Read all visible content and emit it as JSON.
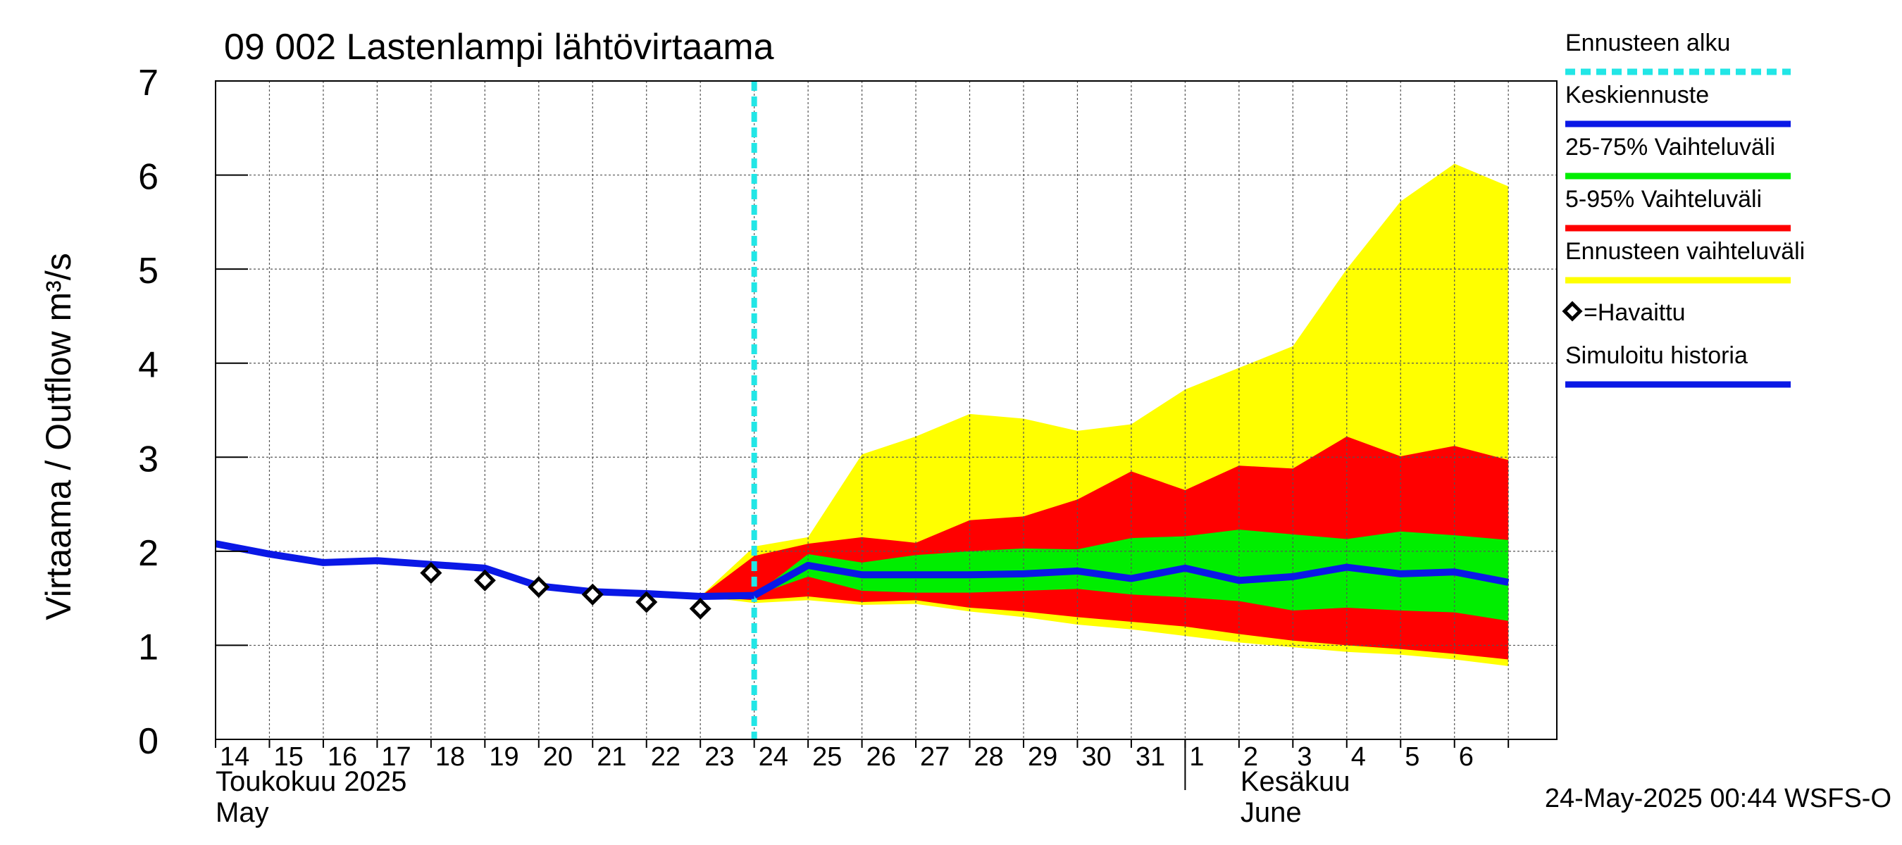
{
  "chart_data": {
    "type": "area",
    "title": "09 002 Lastenlampi lähtövirtaama",
    "ylabel": "Virtaama / Outflow    m³/s",
    "ylim": [
      0,
      7
    ],
    "yticks": [
      0,
      1,
      2,
      3,
      4,
      5,
      6,
      7
    ],
    "x_range": [
      "2025-05-14",
      "2025-06-07"
    ],
    "x_tick_labels": [
      "14",
      "15",
      "16",
      "17",
      "18",
      "19",
      "20",
      "21",
      "22",
      "23",
      "24",
      "25",
      "26",
      "27",
      "28",
      "29",
      "30",
      "31",
      "1",
      "2",
      "3",
      "4",
      "5",
      "6"
    ],
    "month_labels": [
      {
        "fi": "Toukokuu  2025",
        "en": "May",
        "start": "2025-05-14"
      },
      {
        "fi": "Kesäkuu",
        "en": "June",
        "start": "2025-06-01"
      }
    ],
    "grid": true,
    "legend_position": "right",
    "forecast_start": "2025-05-24",
    "legend": [
      {
        "label": "Ennusteen alku",
        "color": "#22e6e6",
        "style": "dashed"
      },
      {
        "label": "Keskiennuste",
        "color": "#0a18e6",
        "style": "line"
      },
      {
        "label": "25-75% Vaihteluväli",
        "color": "#00ee00",
        "style": "line"
      },
      {
        "label": "5-95% Vaihteluväli",
        "color": "#ff0000",
        "style": "line"
      },
      {
        "label": "Ennusteen vaihteluväli",
        "color": "#ffff00",
        "style": "line"
      },
      {
        "label": "=Havaittu",
        "color": "#000000",
        "style": "marker"
      },
      {
        "label": "Simuloitu historia",
        "color": "#0a18e6",
        "style": "line"
      }
    ],
    "series": [
      {
        "name": "Simuloitu historia",
        "color": "#0a18e6",
        "x": [
          0,
          1,
          2,
          3,
          4,
          5,
          6,
          7,
          8,
          9,
          10
        ],
        "values": [
          2.08,
          1.97,
          1.88,
          1.9,
          1.86,
          1.82,
          1.63,
          1.57,
          1.55,
          1.52,
          1.53
        ]
      },
      {
        "name": "Keskiennuste",
        "color": "#0a18e6",
        "x": [
          10,
          11,
          12,
          13,
          14,
          15,
          16,
          17,
          18,
          19,
          20,
          21,
          22,
          23,
          24
        ],
        "values": [
          1.53,
          1.85,
          1.75,
          1.75,
          1.75,
          1.76,
          1.79,
          1.71,
          1.82,
          1.69,
          1.73,
          1.83,
          1.76,
          1.78,
          1.67
        ]
      },
      {
        "name": "=Havaittu",
        "color": "#000000",
        "type": "scatter",
        "x": [
          4,
          5,
          6,
          7,
          8,
          9
        ],
        "values": [
          1.77,
          1.69,
          1.62,
          1.54,
          1.46,
          1.39
        ]
      },
      {
        "name": "Ennusteen vaihteluväli",
        "color": "#ffff00",
        "type": "band",
        "x": [
          9,
          10,
          11,
          12,
          13,
          14,
          15,
          16,
          17,
          18,
          19,
          20,
          21,
          22,
          23,
          24
        ],
        "low": [
          1.52,
          1.45,
          1.48,
          1.43,
          1.44,
          1.36,
          1.3,
          1.22,
          1.17,
          1.1,
          1.03,
          0.98,
          0.93,
          0.9,
          0.85,
          0.78
        ],
        "high": [
          1.52,
          2.05,
          2.15,
          3.03,
          3.22,
          3.46,
          3.41,
          3.28,
          3.35,
          3.72,
          3.95,
          4.18,
          5.0,
          5.72,
          6.12,
          5.88
        ]
      },
      {
        "name": "5-95% Vaihteluväli",
        "color": "#ff0000",
        "type": "band",
        "x": [
          9,
          10,
          11,
          12,
          13,
          14,
          15,
          16,
          17,
          18,
          19,
          20,
          21,
          22,
          23,
          24
        ],
        "low": [
          1.52,
          1.48,
          1.52,
          1.46,
          1.48,
          1.4,
          1.36,
          1.3,
          1.25,
          1.2,
          1.12,
          1.05,
          1.0,
          0.96,
          0.91,
          0.85
        ],
        "high": [
          1.52,
          1.95,
          2.08,
          2.15,
          2.09,
          2.33,
          2.37,
          2.55,
          2.85,
          2.65,
          2.91,
          2.88,
          3.22,
          3.01,
          3.12,
          2.97
        ]
      },
      {
        "name": "25-75% Vaihteluväli",
        "color": "#00ee00",
        "type": "band",
        "x": [
          10,
          11,
          12,
          13,
          14,
          15,
          16,
          17,
          18,
          19,
          20,
          21,
          22,
          23,
          24
        ],
        "low": [
          1.53,
          1.73,
          1.58,
          1.56,
          1.56,
          1.58,
          1.6,
          1.54,
          1.51,
          1.47,
          1.37,
          1.4,
          1.37,
          1.35,
          1.26
        ],
        "high": [
          1.53,
          1.97,
          1.88,
          1.96,
          2.0,
          2.03,
          2.02,
          2.14,
          2.16,
          2.23,
          2.18,
          2.13,
          2.21,
          2.17,
          2.12
        ]
      }
    ]
  },
  "footer": {
    "timestamp": "24-May-2025 00:44 WSFS-O"
  }
}
